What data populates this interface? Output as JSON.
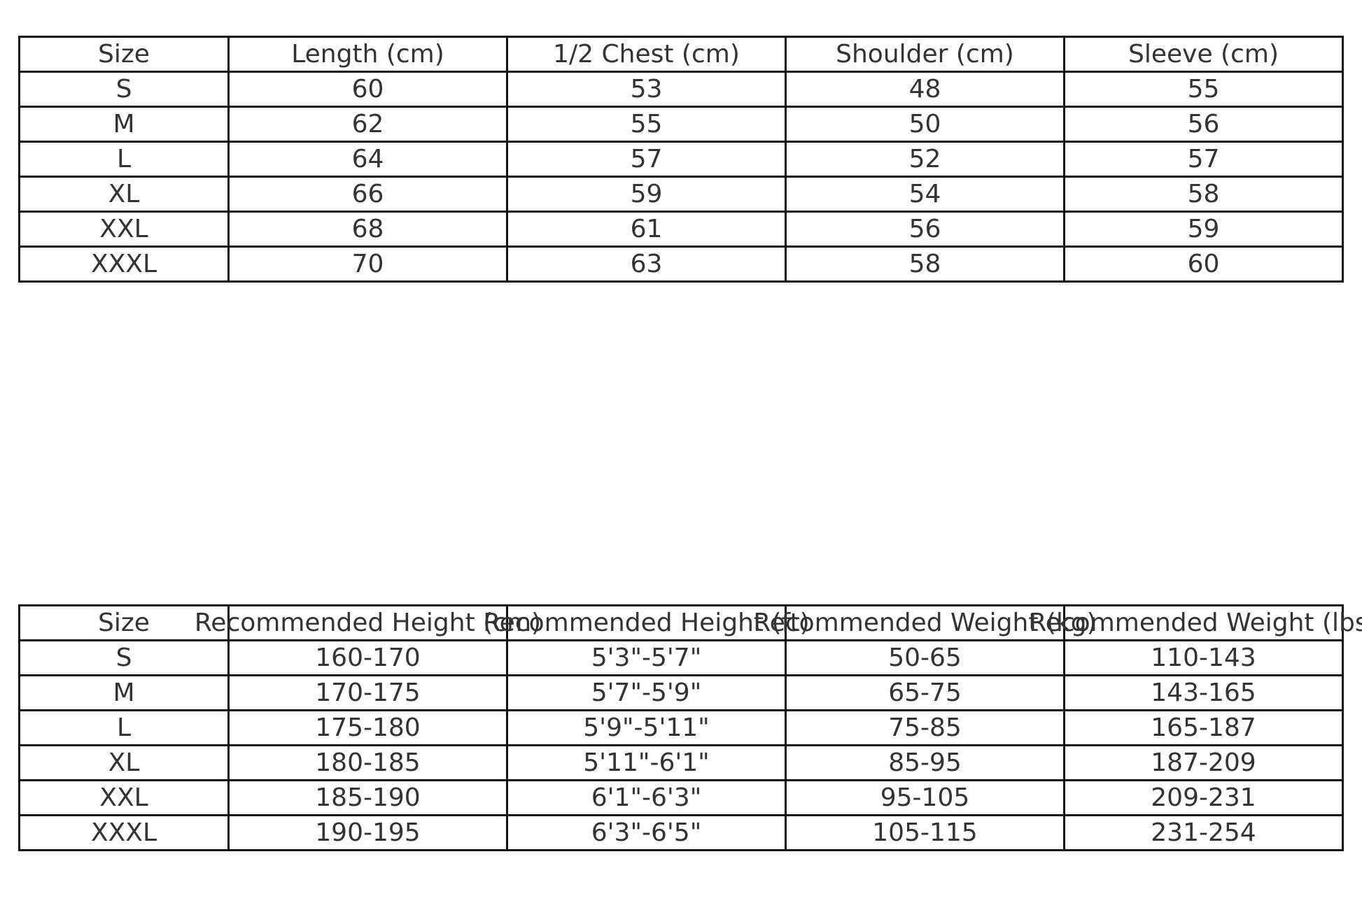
{
  "measurements_table": {
    "headers": [
      "Size",
      "Length (cm)",
      "1/2 Chest (cm)",
      "Shoulder (cm)",
      "Sleeve (cm)"
    ],
    "rows": [
      [
        "S",
        "60",
        "53",
        "48",
        "55"
      ],
      [
        "M",
        "62",
        "55",
        "50",
        "56"
      ],
      [
        "L",
        "64",
        "57",
        "52",
        "57"
      ],
      [
        "XL",
        "66",
        "59",
        "54",
        "58"
      ],
      [
        "XXL",
        "68",
        "61",
        "56",
        "59"
      ],
      [
        "XXXL",
        "70",
        "63",
        "58",
        "60"
      ]
    ]
  },
  "recommendation_table": {
    "headers": [
      "Size",
      "Recommended Height (cm)",
      "Recommended Height (ft)",
      "Recommended Weight (kg)",
      "Recommended Weight (lbs)"
    ],
    "rows": [
      [
        "S",
        "160-170",
        "5'3\"-5'7\"",
        "50-65",
        "110-143"
      ],
      [
        "M",
        "170-175",
        "5'7\"-5'9\"",
        "65-75",
        "143-165"
      ],
      [
        "L",
        "175-180",
        "5'9\"-5'11\"",
        "75-85",
        "165-187"
      ],
      [
        "XL",
        "180-185",
        "5'11\"-6'1\"",
        "85-95",
        "187-209"
      ],
      [
        "XXL",
        "185-190",
        "6'1\"-6'3\"",
        "95-105",
        "209-231"
      ],
      [
        "XXXL",
        "190-195",
        "6'3\"-6'5\"",
        "105-115",
        "231-254"
      ]
    ]
  }
}
